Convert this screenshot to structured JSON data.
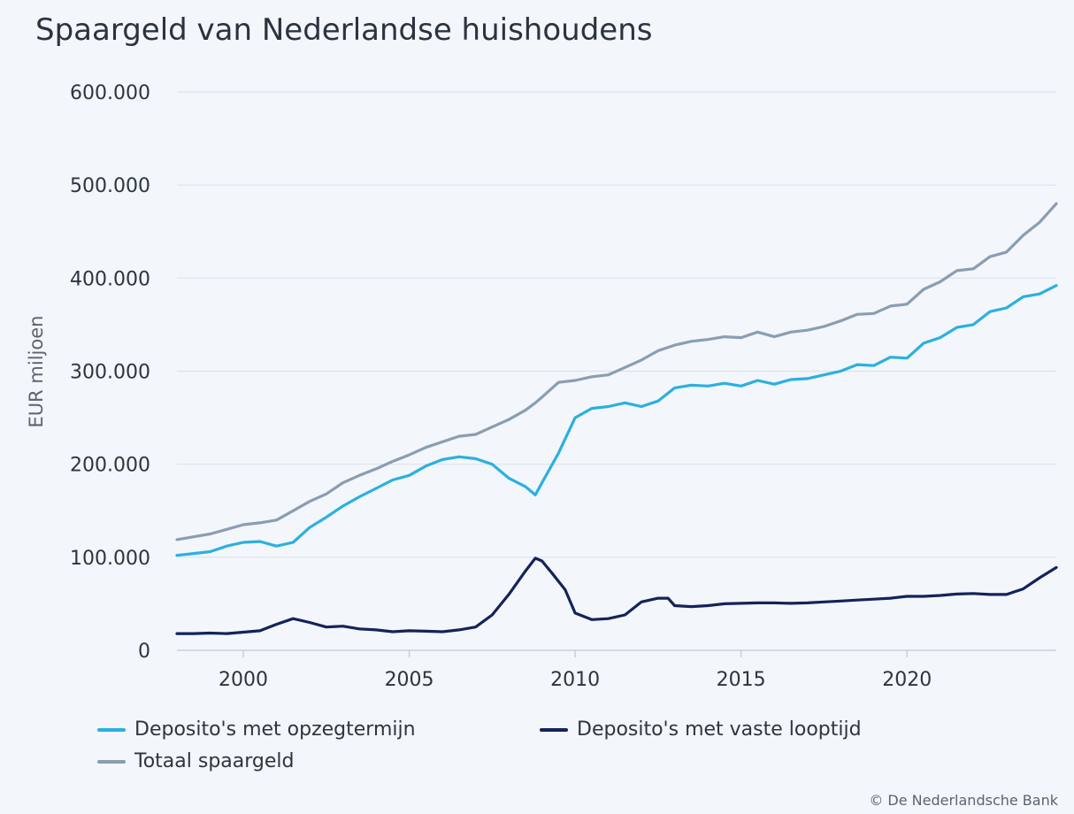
{
  "title": "Spaargeld van Nederlandse huishoudens",
  "credit": "© De Nederlandsche Bank",
  "colors": {
    "background": "#f3f6fa",
    "grid": "#dde3ea",
    "axis": "#c6d0e0",
    "opzegtermijn": "#2bb0e0",
    "vaste_looptijd": "#16225a",
    "totaal": "#8b9db2"
  },
  "chart_data": {
    "type": "line",
    "ylabel": "EUR miljoen",
    "xlabel": "",
    "xlim": [
      1998.0,
      2024.5
    ],
    "ylim": [
      0,
      600000
    ],
    "x_ticks": [
      2000,
      2005,
      2010,
      2015,
      2020
    ],
    "x_tick_labels": [
      "2000",
      "2005",
      "2010",
      "2015",
      "2020"
    ],
    "y_ticks": [
      0,
      100000,
      200000,
      300000,
      400000,
      500000,
      600000
    ],
    "y_tick_labels": [
      "0",
      "100.000",
      "200.000",
      "300.000",
      "400.000",
      "500.000",
      "600.000"
    ],
    "grid": true,
    "legend_position": "bottom",
    "series": [
      {
        "name": "Deposito's met opzegtermijn",
        "color_key": "opzegtermijn",
        "points": [
          [
            1998.0,
            102000
          ],
          [
            1998.5,
            104000
          ],
          [
            1999.0,
            106000
          ],
          [
            1999.5,
            112000
          ],
          [
            2000.0,
            116000
          ],
          [
            2000.5,
            117000
          ],
          [
            2001.0,
            112000
          ],
          [
            2001.5,
            116000
          ],
          [
            2002.0,
            132000
          ],
          [
            2002.5,
            143000
          ],
          [
            2003.0,
            155000
          ],
          [
            2003.5,
            165000
          ],
          [
            2004.0,
            174000
          ],
          [
            2004.5,
            183000
          ],
          [
            2005.0,
            188000
          ],
          [
            2005.5,
            198000
          ],
          [
            2006.0,
            205000
          ],
          [
            2006.5,
            208000
          ],
          [
            2007.0,
            206000
          ],
          [
            2007.5,
            200000
          ],
          [
            2008.0,
            185000
          ],
          [
            2008.5,
            176000
          ],
          [
            2008.8,
            167000
          ],
          [
            2009.0,
            180000
          ],
          [
            2009.5,
            212000
          ],
          [
            2010.0,
            250000
          ],
          [
            2010.5,
            260000
          ],
          [
            2011.0,
            262000
          ],
          [
            2011.5,
            266000
          ],
          [
            2012.0,
            262000
          ],
          [
            2012.5,
            268000
          ],
          [
            2013.0,
            282000
          ],
          [
            2013.5,
            285000
          ],
          [
            2014.0,
            284000
          ],
          [
            2014.5,
            287000
          ],
          [
            2015.0,
            284000
          ],
          [
            2015.5,
            290000
          ],
          [
            2016.0,
            286000
          ],
          [
            2016.5,
            291000
          ],
          [
            2017.0,
            292000
          ],
          [
            2017.5,
            296000
          ],
          [
            2018.0,
            300000
          ],
          [
            2018.5,
            307000
          ],
          [
            2019.0,
            306000
          ],
          [
            2019.5,
            315000
          ],
          [
            2020.0,
            314000
          ],
          [
            2020.5,
            330000
          ],
          [
            2021.0,
            336000
          ],
          [
            2021.5,
            347000
          ],
          [
            2022.0,
            350000
          ],
          [
            2022.5,
            364000
          ],
          [
            2023.0,
            368000
          ],
          [
            2023.5,
            380000
          ],
          [
            2024.0,
            383000
          ],
          [
            2024.5,
            392000
          ]
        ]
      },
      {
        "name": "Deposito's met vaste looptijd",
        "color_key": "vaste_looptijd",
        "points": [
          [
            1998.0,
            18000
          ],
          [
            1998.5,
            18000
          ],
          [
            1999.0,
            18500
          ],
          [
            1999.5,
            18000
          ],
          [
            2000.0,
            19500
          ],
          [
            2000.5,
            21000
          ],
          [
            2001.0,
            28000
          ],
          [
            2001.5,
            34000
          ],
          [
            2002.0,
            30000
          ],
          [
            2002.5,
            25000
          ],
          [
            2003.0,
            26000
          ],
          [
            2003.5,
            23000
          ],
          [
            2004.0,
            22000
          ],
          [
            2004.5,
            20000
          ],
          [
            2005.0,
            21000
          ],
          [
            2005.5,
            20500
          ],
          [
            2006.0,
            20000
          ],
          [
            2006.5,
            22000
          ],
          [
            2007.0,
            25000
          ],
          [
            2007.5,
            38000
          ],
          [
            2008.0,
            60000
          ],
          [
            2008.5,
            85000
          ],
          [
            2008.8,
            99000
          ],
          [
            2009.0,
            96000
          ],
          [
            2009.3,
            83000
          ],
          [
            2009.7,
            65000
          ],
          [
            2010.0,
            40000
          ],
          [
            2010.5,
            33000
          ],
          [
            2011.0,
            34000
          ],
          [
            2011.5,
            38000
          ],
          [
            2012.0,
            52000
          ],
          [
            2012.5,
            56000
          ],
          [
            2012.8,
            56000
          ],
          [
            2013.0,
            48000
          ],
          [
            2013.5,
            47000
          ],
          [
            2014.0,
            48000
          ],
          [
            2014.5,
            50000
          ],
          [
            2015.0,
            50500
          ],
          [
            2015.5,
            51000
          ],
          [
            2016.0,
            51000
          ],
          [
            2016.5,
            50500
          ],
          [
            2017.0,
            51000
          ],
          [
            2017.5,
            52000
          ],
          [
            2018.0,
            53000
          ],
          [
            2018.5,
            54000
          ],
          [
            2019.0,
            55000
          ],
          [
            2019.5,
            56000
          ],
          [
            2020.0,
            58000
          ],
          [
            2020.5,
            58000
          ],
          [
            2021.0,
            59000
          ],
          [
            2021.5,
            60500
          ],
          [
            2022.0,
            61000
          ],
          [
            2022.5,
            60000
          ],
          [
            2023.0,
            60000
          ],
          [
            2023.5,
            66000
          ],
          [
            2024.0,
            78000
          ],
          [
            2024.5,
            89000
          ]
        ]
      },
      {
        "name": "Totaal spaargeld",
        "color_key": "totaal",
        "points": [
          [
            1998.0,
            119000
          ],
          [
            1998.5,
            122000
          ],
          [
            1999.0,
            125000
          ],
          [
            1999.5,
            130000
          ],
          [
            2000.0,
            135000
          ],
          [
            2000.5,
            137000
          ],
          [
            2001.0,
            140000
          ],
          [
            2001.5,
            150000
          ],
          [
            2002.0,
            160000
          ],
          [
            2002.5,
            168000
          ],
          [
            2003.0,
            180000
          ],
          [
            2003.5,
            188000
          ],
          [
            2004.0,
            195000
          ],
          [
            2004.5,
            203000
          ],
          [
            2005.0,
            210000
          ],
          [
            2005.5,
            218000
          ],
          [
            2006.0,
            224000
          ],
          [
            2006.5,
            230000
          ],
          [
            2007.0,
            232000
          ],
          [
            2007.5,
            240000
          ],
          [
            2008.0,
            248000
          ],
          [
            2008.5,
            258000
          ],
          [
            2008.8,
            266000
          ],
          [
            2009.0,
            272000
          ],
          [
            2009.5,
            288000
          ],
          [
            2010.0,
            290000
          ],
          [
            2010.5,
            294000
          ],
          [
            2011.0,
            296000
          ],
          [
            2011.5,
            304000
          ],
          [
            2012.0,
            312000
          ],
          [
            2012.5,
            322000
          ],
          [
            2013.0,
            328000
          ],
          [
            2013.5,
            332000
          ],
          [
            2014.0,
            334000
          ],
          [
            2014.5,
            337000
          ],
          [
            2015.0,
            336000
          ],
          [
            2015.5,
            342000
          ],
          [
            2016.0,
            337000
          ],
          [
            2016.5,
            342000
          ],
          [
            2017.0,
            344000
          ],
          [
            2017.5,
            348000
          ],
          [
            2018.0,
            354000
          ],
          [
            2018.5,
            361000
          ],
          [
            2019.0,
            362000
          ],
          [
            2019.5,
            370000
          ],
          [
            2020.0,
            372000
          ],
          [
            2020.5,
            388000
          ],
          [
            2021.0,
            396000
          ],
          [
            2021.5,
            408000
          ],
          [
            2022.0,
            410000
          ],
          [
            2022.5,
            423000
          ],
          [
            2023.0,
            428000
          ],
          [
            2023.5,
            446000
          ],
          [
            2024.0,
            460000
          ],
          [
            2024.5,
            480000
          ]
        ]
      }
    ]
  }
}
